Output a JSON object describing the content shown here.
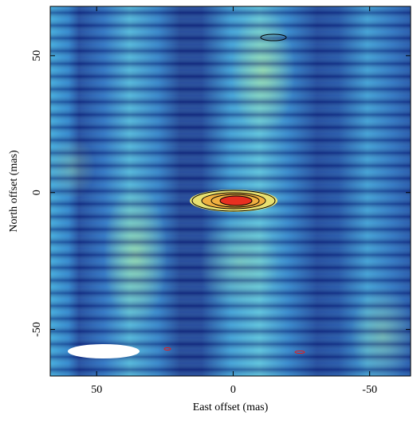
{
  "chart_data": {
    "type": "image",
    "xlabel": "East offset (mas)",
    "ylabel": "North offset (mas)",
    "xlim": [
      67,
      -65
    ],
    "ylim": [
      -67,
      68
    ],
    "xticks": [
      50,
      0,
      -50
    ],
    "yticks": [
      50,
      0,
      -50
    ]
  }
}
